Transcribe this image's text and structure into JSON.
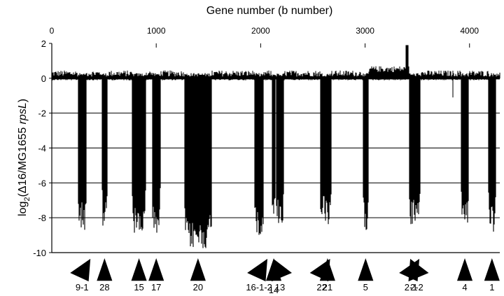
{
  "chart_data": {
    "type": "bar",
    "title": "Gene number (b number)",
    "xlabel": "",
    "ylabel": "log2(Δ16/MG1655 rpsL)",
    "ylabel_parts": {
      "pre": "log",
      "sub": "2",
      "mid": "(Δ16/MG1655 ",
      "italic": "rpsL",
      "post": ")"
    },
    "xlim": [
      0,
      4290
    ],
    "ylim": [
      -10,
      2
    ],
    "x_ticks": [
      "0",
      "1000",
      "2000",
      "3000",
      "4000"
    ],
    "y_ticks": [
      "2",
      "0",
      "-2",
      "-4",
      "-6",
      "-8",
      "-10"
    ],
    "grid": true,
    "baseline_noise_amplitude": 0.35,
    "deletion_series": {
      "name": "deletions",
      "regions": [
        {
          "label": "9-1",
          "x_start": 250,
          "x_end": 330,
          "depth": -8.7
        },
        {
          "label": "28",
          "x_start": 480,
          "x_end": 530,
          "depth": -8.5
        },
        {
          "label": "15",
          "x_start": 770,
          "x_end": 900,
          "depth": -9.0
        },
        {
          "label": "17",
          "x_start": 960,
          "x_end": 1040,
          "depth": -8.9
        },
        {
          "label": "20",
          "x_start": 1270,
          "x_end": 1530,
          "depth": -9.8
        },
        {
          "label": "16-1-2",
          "x_start": 1940,
          "x_end": 2030,
          "depth": -9.0
        },
        {
          "label": "14",
          "x_start": 2110,
          "x_end": 2140,
          "depth": -8.4
        },
        {
          "label": "13",
          "x_start": 2150,
          "x_end": 2220,
          "depth": -8.4
        },
        {
          "label": "22",
          "x_start": 2570,
          "x_end": 2600,
          "depth": -8.2
        },
        {
          "label": "21",
          "x_start": 2600,
          "x_end": 2680,
          "depth": -8.6
        },
        {
          "label": "5",
          "x_start": 2980,
          "x_end": 3030,
          "depth": -8.7
        },
        {
          "label": "2-1",
          "x_start": 3420,
          "x_end": 3460,
          "depth": -8.5
        },
        {
          "label": "2-2",
          "x_start": 3460,
          "x_end": 3530,
          "depth": -8.7
        },
        {
          "label": "4",
          "x_start": 3920,
          "x_end": 3990,
          "depth": -8.6
        },
        {
          "label": "1",
          "x_start": 4180,
          "x_end": 4250,
          "depth": -8.9
        }
      ],
      "isolated_dips": [
        {
          "x": 3840,
          "depth": -1.1
        }
      ]
    },
    "markers": [
      {
        "label": "9-1",
        "direction": "left"
      },
      {
        "label": "28",
        "direction": "up"
      },
      {
        "label": "15",
        "direction": "up"
      },
      {
        "label": "17",
        "direction": "up"
      },
      {
        "label": "20",
        "direction": "up"
      },
      {
        "label": "16-1-2",
        "direction": "left"
      },
      {
        "label": "14",
        "direction": "up"
      },
      {
        "label": "13",
        "direction": "right"
      },
      {
        "label": "22",
        "direction": "left"
      },
      {
        "label": "21",
        "direction": "up"
      },
      {
        "label": "5",
        "direction": "up"
      },
      {
        "label": "2-1",
        "direction": "left"
      },
      {
        "label": "2-2",
        "direction": "right"
      },
      {
        "label": "4",
        "direction": "up"
      },
      {
        "label": "1",
        "direction": "up"
      }
    ],
    "colors": {
      "bars": "#000000",
      "grid": "#000000",
      "background": "#ffffff"
    }
  }
}
